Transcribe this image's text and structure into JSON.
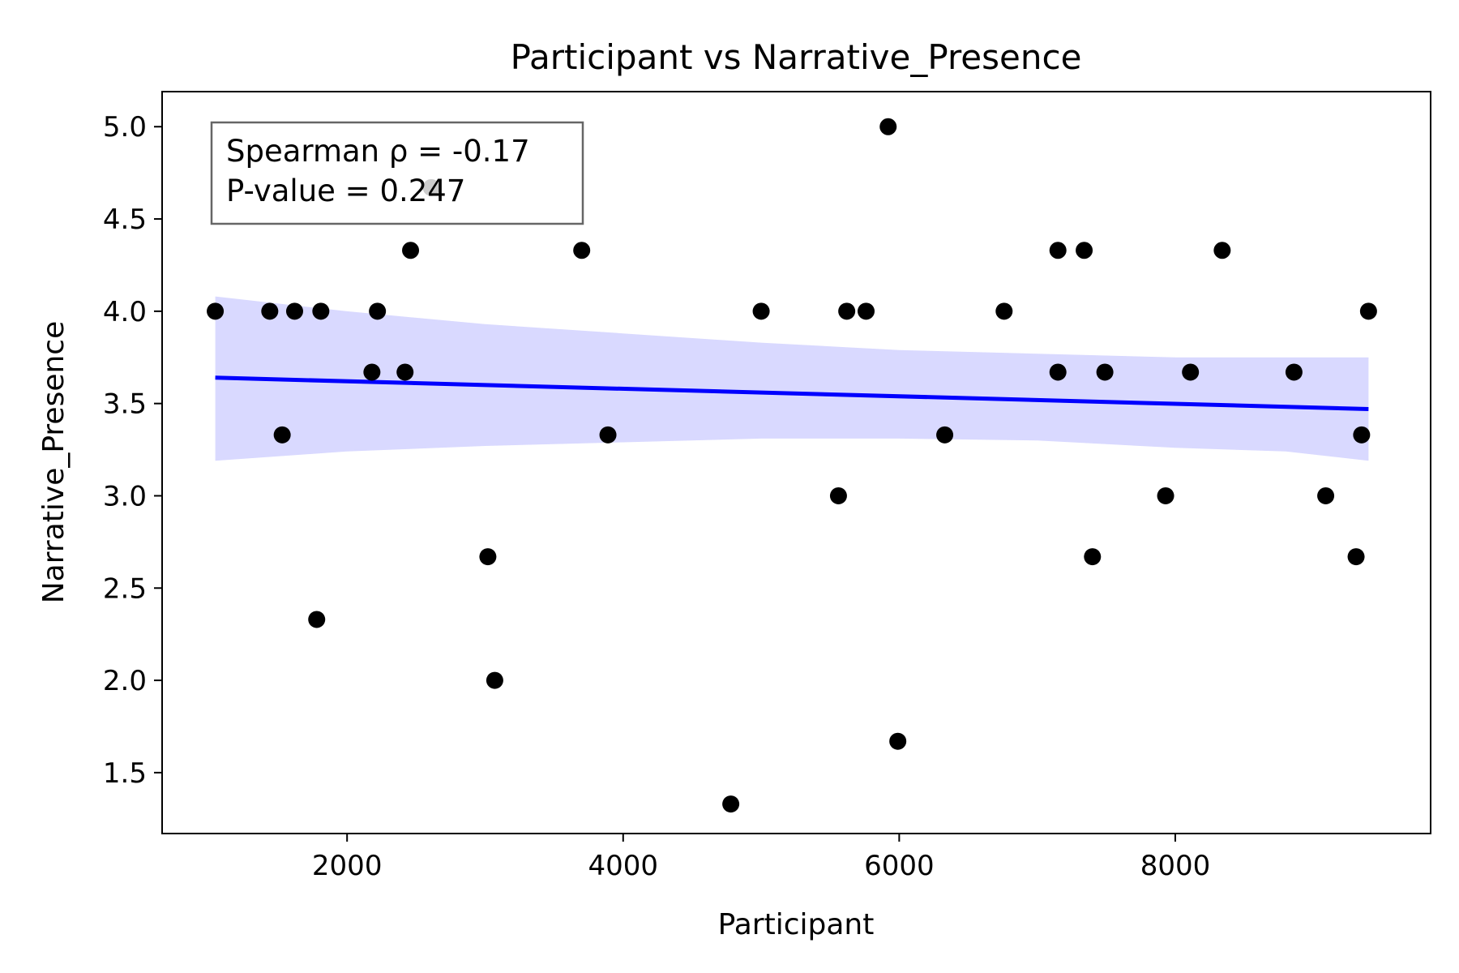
{
  "chart_data": {
    "type": "scatter",
    "title": "Participant vs Narrative_Presence",
    "xlabel": "Participant",
    "ylabel": "Narrative_Presence",
    "xlim": [
      660,
      9850
    ],
    "ylim": [
      1.17,
      5.19
    ],
    "xticks": [
      2000,
      4000,
      6000,
      8000
    ],
    "xtick_labels": [
      "2000",
      "4000",
      "6000",
      "8000"
    ],
    "yticks": [
      1.5,
      2.0,
      2.5,
      3.0,
      3.5,
      4.0,
      4.5,
      5.0
    ],
    "ytick_labels": [
      "1.5",
      "2.0",
      "2.5",
      "3.0",
      "3.5",
      "4.0",
      "4.5",
      "5.0"
    ],
    "grid": false,
    "annotation": {
      "lines": [
        "Spearman ρ = -0.17",
        "P-value = 0.247"
      ],
      "placement": "top-left"
    },
    "colors": {
      "points": "#000000",
      "regression_line": "#0000ff",
      "confidence_band": "#d9d9ff",
      "annotation_border": "#666666"
    },
    "points": [
      {
        "x": 1045,
        "y": 4.0
      },
      {
        "x": 1440,
        "y": 4.0
      },
      {
        "x": 1530,
        "y": 3.33
      },
      {
        "x": 1620,
        "y": 4.0
      },
      {
        "x": 1780,
        "y": 2.33
      },
      {
        "x": 1810,
        "y": 4.0
      },
      {
        "x": 2180,
        "y": 3.67
      },
      {
        "x": 2220,
        "y": 4.0
      },
      {
        "x": 2420,
        "y": 3.67
      },
      {
        "x": 2460,
        "y": 4.33
      },
      {
        "x": 2610,
        "y": 4.67
      },
      {
        "x": 3020,
        "y": 2.67
      },
      {
        "x": 3070,
        "y": 2.0
      },
      {
        "x": 3700,
        "y": 4.33
      },
      {
        "x": 3890,
        "y": 3.33
      },
      {
        "x": 4780,
        "y": 1.33
      },
      {
        "x": 5000,
        "y": 4.0
      },
      {
        "x": 5560,
        "y": 3.0
      },
      {
        "x": 5620,
        "y": 4.0
      },
      {
        "x": 5760,
        "y": 4.0
      },
      {
        "x": 5920,
        "y": 5.0
      },
      {
        "x": 5990,
        "y": 1.67
      },
      {
        "x": 6330,
        "y": 3.33
      },
      {
        "x": 6760,
        "y": 4.0
      },
      {
        "x": 7150,
        "y": 4.33
      },
      {
        "x": 7150,
        "y": 3.67
      },
      {
        "x": 7340,
        "y": 4.33
      },
      {
        "x": 7400,
        "y": 2.67
      },
      {
        "x": 7490,
        "y": 3.67
      },
      {
        "x": 7930,
        "y": 3.0
      },
      {
        "x": 8110,
        "y": 3.67
      },
      {
        "x": 8340,
        "y": 4.33
      },
      {
        "x": 8860,
        "y": 3.67
      },
      {
        "x": 9090,
        "y": 3.0
      },
      {
        "x": 9310,
        "y": 2.67
      },
      {
        "x": 9350,
        "y": 3.33
      },
      {
        "x": 9400,
        "y": 4.0
      }
    ],
    "regression_line": {
      "x": [
        1045,
        9400
      ],
      "y": [
        3.64,
        3.47
      ]
    },
    "confidence_band": {
      "x": [
        1045,
        2000,
        3000,
        4000,
        5000,
        6000,
        7000,
        8000,
        8800,
        9400
      ],
      "upper": [
        4.08,
        4.0,
        3.93,
        3.88,
        3.83,
        3.79,
        3.77,
        3.75,
        3.75,
        3.75
      ],
      "lower": [
        3.19,
        3.24,
        3.27,
        3.29,
        3.31,
        3.31,
        3.3,
        3.26,
        3.24,
        3.19
      ]
    }
  }
}
